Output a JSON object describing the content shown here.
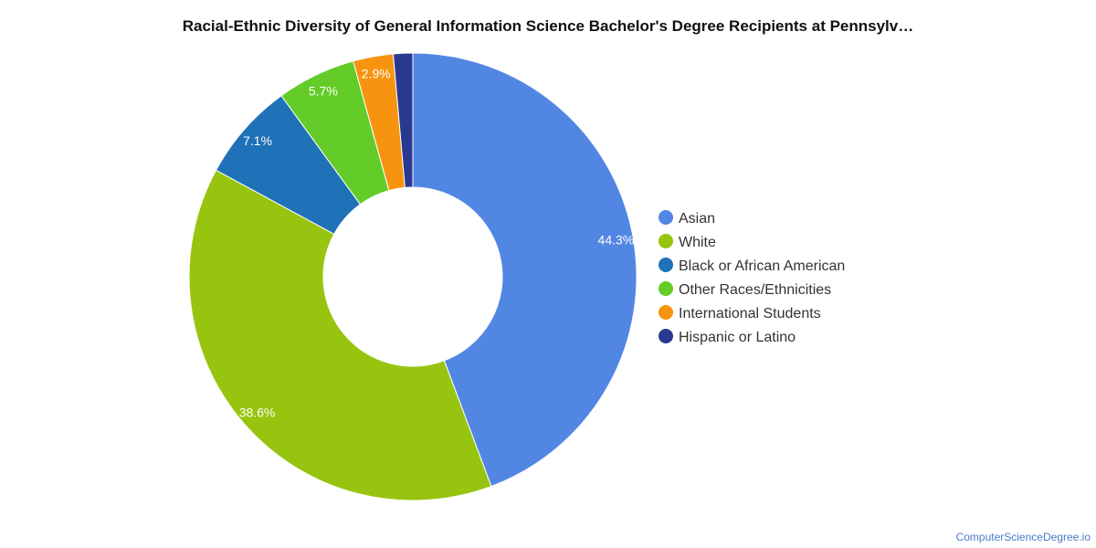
{
  "chart_data": {
    "type": "pie",
    "title": "Racial-Ethnic Diversity of General Information Science Bachelor's Degree Recipients at Pennsylv…",
    "donut": true,
    "slices": [
      {
        "name": "Asian",
        "value": 44.3,
        "label": "44.3%",
        "color": "#5286e3"
      },
      {
        "name": "White",
        "value": 38.6,
        "label": "38.6%",
        "color": "#97c40e"
      },
      {
        "name": "Black or African American",
        "value": 7.1,
        "label": "7.1%",
        "color": "#1f71b8"
      },
      {
        "name": "Other Races/Ethnicities",
        "value": 5.7,
        "label": "5.7%",
        "color": "#63cc28"
      },
      {
        "name": "International Students",
        "value": 2.9,
        "label": "2.9%",
        "color": "#f7940f"
      },
      {
        "name": "Hispanic or Latino",
        "value": 1.4,
        "label": "",
        "color": "#2a3990"
      }
    ],
    "legend_position": "right"
  },
  "credit": "ComputerScienceDegree.io"
}
